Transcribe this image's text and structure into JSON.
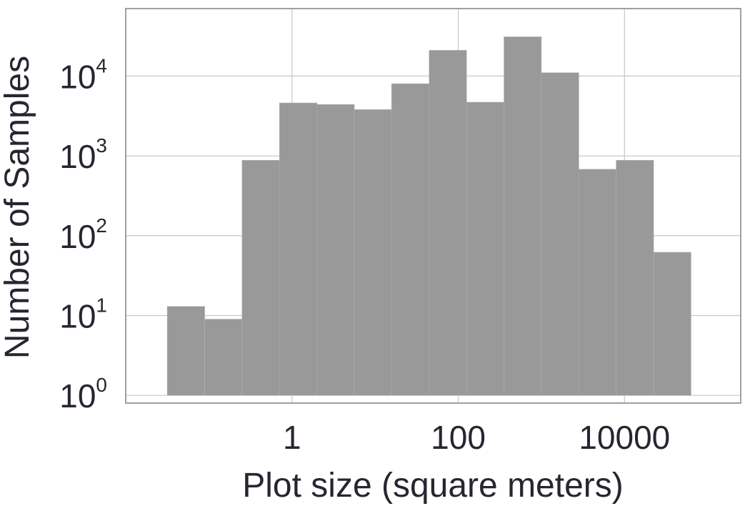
{
  "chart_data": {
    "type": "bar",
    "subtype": "histogram",
    "title": "",
    "xlabel": "Plot size (square meters)",
    "ylabel": "Number of Samples",
    "x_scale": "log",
    "y_scale": "log",
    "xlim": [
      0.01,
      250000
    ],
    "ylim": [
      0.8,
      70000
    ],
    "x_ticks": [
      1,
      100,
      10000
    ],
    "x_tick_labels": [
      "1",
      "100",
      "10000"
    ],
    "y_ticks": [
      1,
      10,
      100,
      1000,
      10000
    ],
    "y_tick_labels": [
      {
        "base": "10",
        "exp": "0"
      },
      {
        "base": "10",
        "exp": "1"
      },
      {
        "base": "10",
        "exp": "2"
      },
      {
        "base": "10",
        "exp": "3"
      },
      {
        "base": "10",
        "exp": "4"
      }
    ],
    "grid": true,
    "bar_color": "#999999",
    "bins": [
      {
        "x0": 0.0316,
        "x1": 0.0891,
        "count": 13
      },
      {
        "x0": 0.0891,
        "x1": 0.251,
        "count": 9
      },
      {
        "x0": 0.251,
        "x1": 0.708,
        "count": 880
      },
      {
        "x0": 0.708,
        "x1": 2.0,
        "count": 4600
      },
      {
        "x0": 2.0,
        "x1": 5.62,
        "count": 4400
      },
      {
        "x0": 5.62,
        "x1": 15.8,
        "count": 3800
      },
      {
        "x0": 15.8,
        "x1": 44.7,
        "count": 8000
      },
      {
        "x0": 44.7,
        "x1": 126,
        "count": 21000
      },
      {
        "x0": 126,
        "x1": 355,
        "count": 4700
      },
      {
        "x0": 355,
        "x1": 1000,
        "count": 31000
      },
      {
        "x0": 1000,
        "x1": 2820,
        "count": 11000
      },
      {
        "x0": 2820,
        "x1": 7940,
        "count": 680
      },
      {
        "x0": 7940,
        "x1": 22400,
        "count": 880
      },
      {
        "x0": 22400,
        "x1": 63100,
        "count": 62
      }
    ]
  }
}
